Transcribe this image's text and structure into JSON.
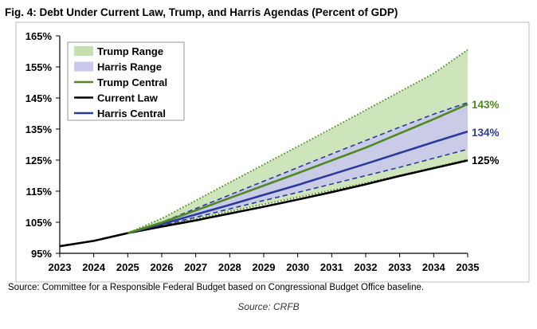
{
  "chart_data": {
    "type": "area",
    "title": "Fig. 4: Debt Under Current Law, Trump, and Harris Agendas (Percent of GDP)",
    "x": [
      2023,
      2024,
      2025,
      2026,
      2027,
      2028,
      2029,
      2030,
      2031,
      2032,
      2033,
      2034,
      2035
    ],
    "ylim": [
      95,
      165
    ],
    "yticks": [
      95,
      105,
      115,
      125,
      135,
      145,
      155,
      165
    ],
    "ytick_labels": [
      "95%",
      "105%",
      "115%",
      "125%",
      "135%",
      "145%",
      "155%",
      "165%"
    ],
    "xtick_labels": [
      "2023",
      "2024",
      "2025",
      "2026",
      "2027",
      "2028",
      "2029",
      "2030",
      "2031",
      "2032",
      "2033",
      "2034",
      "2035"
    ],
    "legend_position": "top-left",
    "series": [
      {
        "name": "Trump Range",
        "kind": "band",
        "color": "#c6dfae",
        "x": [
          2025,
          2026,
          2027,
          2028,
          2029,
          2030,
          2031,
          2032,
          2033,
          2034,
          2035
        ],
        "low": [
          101.5,
          103.9,
          106.0,
          108.5,
          110.8,
          113.0,
          115.3,
          117.6,
          120.1,
          122.6,
          125.2
        ],
        "high": [
          101.5,
          106.2,
          112.0,
          117.8,
          123.6,
          129.4,
          135.2,
          141.1,
          147.0,
          152.9,
          160.5
        ]
      },
      {
        "name": "Harris Range",
        "kind": "band",
        "color": "#c9c7ee",
        "x": [
          2025,
          2026,
          2027,
          2028,
          2029,
          2030,
          2031,
          2032,
          2033,
          2034,
          2035
        ],
        "low": [
          101.5,
          104.0,
          106.6,
          109.3,
          112.0,
          114.6,
          117.3,
          120.0,
          122.7,
          125.6,
          128.5
        ],
        "high": [
          101.5,
          105.0,
          109.4,
          113.8,
          118.2,
          122.6,
          127.0,
          131.3,
          135.6,
          139.8,
          143.5
        ]
      },
      {
        "name": "Trump Central",
        "kind": "line",
        "color": "#4f8a1f",
        "x": [
          2025,
          2026,
          2027,
          2028,
          2029,
          2030,
          2031,
          2032,
          2033,
          2034,
          2035
        ],
        "values": [
          101.5,
          104.9,
          108.8,
          112.8,
          116.8,
          120.8,
          124.9,
          129.0,
          133.6,
          138.2,
          143.0
        ]
      },
      {
        "name": "Current Law",
        "kind": "line",
        "color": "#000000",
        "x": [
          2023,
          2024,
          2025,
          2026,
          2027,
          2028,
          2029,
          2030,
          2031,
          2032,
          2033,
          2034,
          2035
        ],
        "values": [
          97.3,
          99.0,
          101.5,
          103.6,
          105.6,
          107.8,
          110.0,
          112.3,
          114.7,
          117.2,
          119.9,
          122.4,
          124.9
        ]
      },
      {
        "name": "Harris Central",
        "kind": "line",
        "color": "#2b3a9b",
        "x": [
          2025,
          2026,
          2027,
          2028,
          2029,
          2030,
          2031,
          2032,
          2033,
          2034,
          2035
        ],
        "values": [
          101.5,
          104.4,
          107.5,
          110.6,
          113.8,
          117.0,
          120.4,
          123.8,
          127.3,
          130.8,
          134.2
        ]
      }
    ],
    "end_labels": [
      {
        "text": "143%",
        "value": 143,
        "color": "#4f8a1f"
      },
      {
        "text": "134%",
        "value": 134,
        "color": "#2b3a9b"
      },
      {
        "text": "125%",
        "value": 125,
        "color": "#000000"
      }
    ]
  },
  "source_note": "Source: Committee for a Responsible Federal Budget based on Congressional Budget Office baseline.",
  "caption": "Source: CRFB"
}
